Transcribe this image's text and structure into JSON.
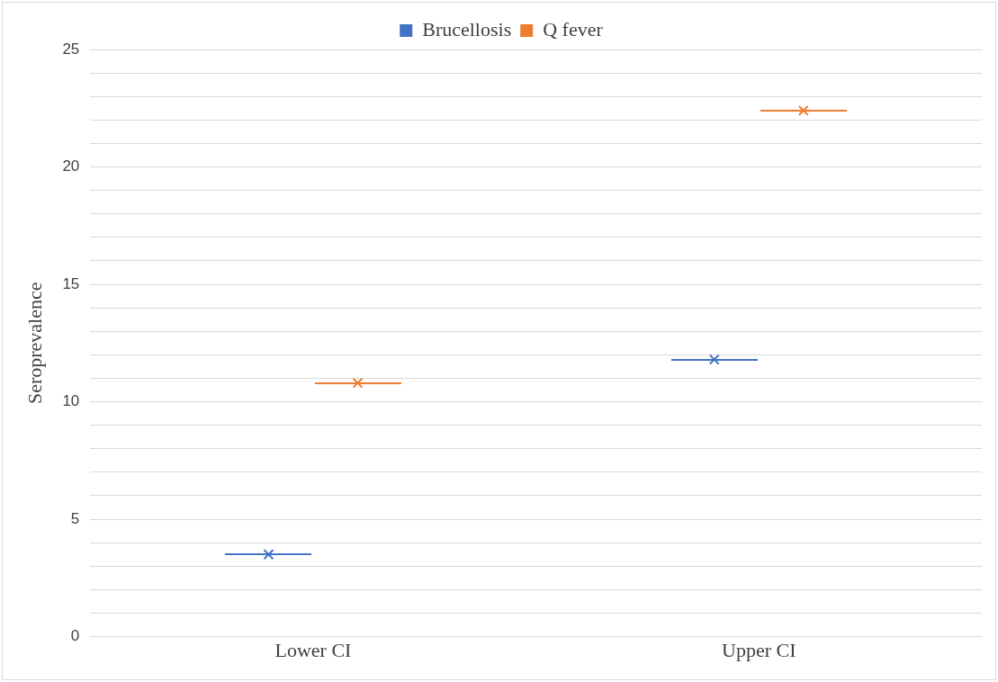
{
  "chart_data": {
    "type": "scatter",
    "categories": [
      "Lower CI",
      "Upper CI"
    ],
    "ylabel": "Seroprevalence",
    "series": [
      {
        "name": "Brucellosis",
        "color": "#4472c4",
        "values": [
          3.5,
          11.8
        ]
      },
      {
        "name": "Q fever",
        "color": "#ed7d31",
        "values": [
          10.8,
          22.4
        ]
      }
    ],
    "ylim": [
      0,
      25
    ],
    "yticks": [
      0,
      {
        "value": 1,
        "label": null
      },
      {
        "value": 2,
        "label": null
      },
      {
        "value": 3,
        "label": null
      },
      {
        "value": 4,
        "label": null
      },
      5,
      {
        "value": 6,
        "label": null
      },
      {
        "value": 7,
        "label": null
      },
      {
        "value": 8,
        "label": null
      },
      {
        "value": 9,
        "label": null
      },
      10,
      {
        "value": 11,
        "label": null
      },
      {
        "value": 12,
        "label": null
      },
      {
        "value": 13,
        "label": null
      },
      {
        "value": 14,
        "label": null
      },
      15,
      {
        "value": 16,
        "label": null
      },
      {
        "value": 17,
        "label": null
      },
      {
        "value": 18,
        "label": null
      },
      {
        "value": 19,
        "label": null
      },
      20,
      {
        "value": 21,
        "label": null
      },
      {
        "value": 22,
        "label": null
      },
      {
        "value": 23,
        "label": null
      },
      {
        "value": 24,
        "label": null
      },
      25
    ],
    "grid": "y",
    "legend": "top",
    "marker": "cross"
  }
}
